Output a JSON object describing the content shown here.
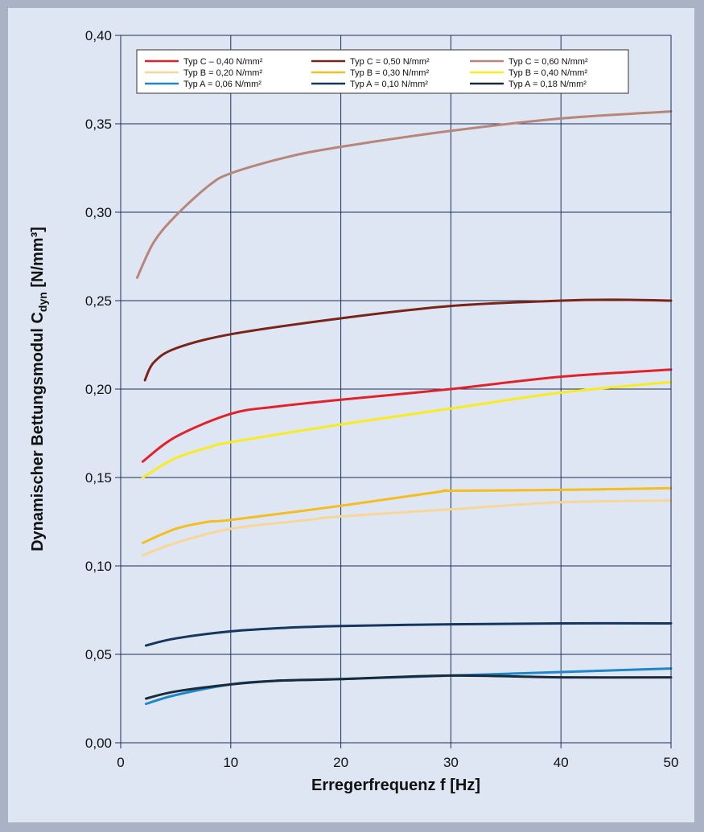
{
  "chart_data": {
    "type": "line",
    "xlabel": "Erregerfrequenz f [Hz]",
    "ylabel_main": "Dynamischer Bettungsmodul C",
    "ylabel_sub": "dyn",
    "ylabel_unit": " [N/mm³]",
    "xlim": [
      0,
      50
    ],
    "ylim": [
      0,
      0.4
    ],
    "x_ticks": [
      0,
      10,
      20,
      30,
      40,
      50
    ],
    "x_tick_labels": [
      "0",
      "10",
      "20",
      "30",
      "40",
      "50"
    ],
    "y_ticks": [
      0,
      0.05,
      0.1,
      0.15,
      0.2,
      0.25,
      0.3,
      0.35,
      0.4
    ],
    "y_tick_labels": [
      "0,00",
      "0,05",
      "0,10",
      "0,15",
      "0,20",
      "0,25",
      "0,30",
      "0,35",
      "0,40"
    ],
    "grid": true,
    "legend_position": "top",
    "series": [
      {
        "name": "Typ C – 0,40 N/mm²",
        "color": "#e2222a",
        "points": [
          [
            2,
            0.159
          ],
          [
            5,
            0.173
          ],
          [
            10,
            0.186
          ],
          [
            14,
            0.19
          ],
          [
            20,
            0.194
          ],
          [
            30,
            0.2
          ],
          [
            40,
            0.207
          ],
          [
            50,
            0.211
          ]
        ]
      },
      {
        "name": "Typ C = 0,50 N/mm²",
        "color": "#7a2418",
        "points": [
          [
            2.2,
            0.205
          ],
          [
            3,
            0.215
          ],
          [
            5,
            0.223
          ],
          [
            10,
            0.231
          ],
          [
            20,
            0.24
          ],
          [
            30,
            0.247
          ],
          [
            40,
            0.25
          ],
          [
            45,
            0.2505
          ],
          [
            50,
            0.25
          ]
        ]
      },
      {
        "name": "Typ C = 0,60 N/mm²",
        "color": "#b8857a",
        "points": [
          [
            1.5,
            0.263
          ],
          [
            3,
            0.283
          ],
          [
            5,
            0.298
          ],
          [
            8,
            0.315
          ],
          [
            10,
            0.322
          ],
          [
            15,
            0.331
          ],
          [
            20,
            0.337
          ],
          [
            30,
            0.346
          ],
          [
            40,
            0.353
          ],
          [
            50,
            0.357
          ]
        ]
      },
      {
        "name": "Typ B = 0,20 N/mm²",
        "color": "#f8d698",
        "points": [
          [
            2,
            0.106
          ],
          [
            5,
            0.113
          ],
          [
            10,
            0.121
          ],
          [
            17,
            0.126
          ],
          [
            20,
            0.128
          ],
          [
            30,
            0.132
          ],
          [
            40,
            0.136
          ],
          [
            50,
            0.137
          ]
        ]
      },
      {
        "name": "Typ B = 0,30 N/mm²",
        "color": "#f5be1e",
        "points": [
          [
            2,
            0.113
          ],
          [
            5,
            0.121
          ],
          [
            8,
            0.125
          ],
          [
            10,
            0.126
          ],
          [
            20,
            0.134
          ],
          [
            29,
            0.142
          ],
          [
            30,
            0.1425
          ],
          [
            40,
            0.143
          ],
          [
            50,
            0.144
          ]
        ]
      },
      {
        "name": "Typ B = 0,40 N/mm²",
        "color": "#f8ec20",
        "points": [
          [
            2,
            0.15
          ],
          [
            5,
            0.161
          ],
          [
            8,
            0.167
          ],
          [
            10,
            0.17
          ],
          [
            20,
            0.18
          ],
          [
            30,
            0.189
          ],
          [
            40,
            0.198
          ],
          [
            50,
            0.204
          ]
        ]
      },
      {
        "name": "Typ A = 0,06 N/mm²",
        "color": "#1e87c8",
        "points": [
          [
            2.3,
            0.022
          ],
          [
            5,
            0.027
          ],
          [
            10,
            0.033
          ],
          [
            14,
            0.035
          ],
          [
            20,
            0.036
          ],
          [
            30,
            0.038
          ],
          [
            40,
            0.04
          ],
          [
            50,
            0.042
          ]
        ]
      },
      {
        "name": "Typ A = 0,10 N/mm²",
        "color": "#15365f",
        "points": [
          [
            2.3,
            0.055
          ],
          [
            5,
            0.059
          ],
          [
            10,
            0.063
          ],
          [
            15,
            0.065
          ],
          [
            20,
            0.066
          ],
          [
            30,
            0.067
          ],
          [
            40,
            0.0675
          ],
          [
            50,
            0.0675
          ]
        ]
      },
      {
        "name": "Typ A = 0,18 N/mm²",
        "color": "#1a2a3a",
        "points": [
          [
            2.3,
            0.025
          ],
          [
            5,
            0.029
          ],
          [
            10,
            0.033
          ],
          [
            14,
            0.035
          ],
          [
            20,
            0.036
          ],
          [
            30,
            0.038
          ],
          [
            40,
            0.037
          ],
          [
            50,
            0.037
          ]
        ]
      }
    ]
  }
}
